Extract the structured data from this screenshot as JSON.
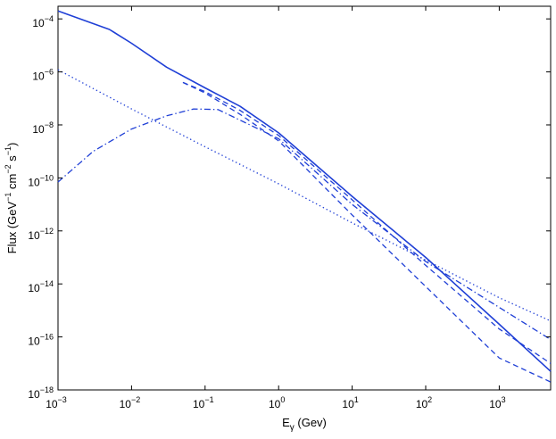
{
  "chart_data": {
    "type": "line",
    "title": "",
    "xlabel": {
      "base": "E",
      "sub": "γ",
      "rest": " (Gev)"
    },
    "ylabel": {
      "parts": [
        {
          "t": "Flux (GeV"
        },
        {
          "t": "−1",
          "sup": true
        },
        {
          "t": " cm"
        },
        {
          "t": "−2",
          "sup": true
        },
        {
          "t": " s"
        },
        {
          "t": "−1",
          "sup": true
        },
        {
          "t": ")"
        }
      ]
    },
    "x_scale": "log",
    "y_scale": "log",
    "xlim": [
      0.001,
      5000
    ],
    "ylim": [
      1e-18,
      0.0003
    ],
    "xticks": [
      0.001,
      0.01,
      0.1,
      1,
      10,
      100,
      1000
    ],
    "xtick_labels": [
      {
        "base": "10",
        "exp": "−3"
      },
      {
        "base": "10",
        "exp": "−2"
      },
      {
        "base": "10",
        "exp": "−1"
      },
      {
        "base": "10",
        "exp": "0"
      },
      {
        "base": "10",
        "exp": "1"
      },
      {
        "base": "10",
        "exp": "2"
      },
      {
        "base": "10",
        "exp": "3"
      }
    ],
    "yticks": [
      1e-18,
      1e-16,
      1e-14,
      1e-12,
      1e-10,
      1e-08,
      1e-06,
      0.0001
    ],
    "ytick_labels": [
      {
        "base": "10",
        "exp": "−18"
      },
      {
        "base": "10",
        "exp": "−16"
      },
      {
        "base": "10",
        "exp": "−14"
      },
      {
        "base": "10",
        "exp": "−12"
      },
      {
        "base": "10",
        "exp": "−10"
      },
      {
        "base": "10",
        "exp": "−8"
      },
      {
        "base": "10",
        "exp": "−6"
      },
      {
        "base": "10",
        "exp": "−4"
      }
    ],
    "grid": false,
    "line_color": "#1f3fd6",
    "series": [
      {
        "style": "solid",
        "points": [
          [
            0.001,
            0.0002
          ],
          [
            0.005,
            4e-05
          ],
          [
            0.01,
            1.2e-05
          ],
          [
            0.03,
            1.5e-06
          ],
          [
            0.1,
            2.5e-07
          ],
          [
            0.3,
            5e-08
          ],
          [
            1,
            5e-09
          ],
          [
            10,
            2e-11
          ],
          [
            100,
            1e-13
          ],
          [
            1000,
            3e-16
          ],
          [
            5000,
            5e-18
          ]
        ]
      },
      {
        "style": "dotted",
        "points": [
          [
            0.001,
            1.2e-06
          ],
          [
            0.01,
            4e-08
          ],
          [
            0.1,
            1.5e-09
          ],
          [
            1,
            6e-11
          ],
          [
            10,
            2e-12
          ],
          [
            100,
            8e-14
          ],
          [
            1000,
            3e-15
          ],
          [
            5000,
            4e-16
          ]
        ]
      },
      {
        "style": "dashdot",
        "points": [
          [
            0.001,
            7e-11
          ],
          [
            0.003,
            1e-09
          ],
          [
            0.01,
            7e-09
          ],
          [
            0.03,
            2.2e-08
          ],
          [
            0.07,
            4e-08
          ],
          [
            0.15,
            3.8e-08
          ],
          [
            0.3,
            1.5e-08
          ],
          [
            1,
            3e-09
          ],
          [
            10,
            1e-11
          ],
          [
            100,
            7e-14
          ],
          [
            1000,
            1.3e-15
          ],
          [
            5000,
            8e-17
          ]
        ]
      },
      {
        "style": "dashed",
        "points": [
          [
            0.05,
            4e-07
          ],
          [
            0.1,
            1.6e-07
          ],
          [
            0.3,
            2.5e-08
          ],
          [
            1,
            2.5e-09
          ],
          [
            10,
            4e-12
          ],
          [
            100,
            8e-15
          ],
          [
            1000,
            1.6e-17
          ],
          [
            5000,
            2e-18
          ]
        ]
      },
      {
        "style": "dashed",
        "points": [
          [
            0.05,
            4e-07
          ],
          [
            0.1,
            1.8e-07
          ],
          [
            0.3,
            3.5e-08
          ],
          [
            1,
            4e-09
          ],
          [
            10,
            1.5e-11
          ],
          [
            100,
            5e-14
          ],
          [
            1000,
            2e-16
          ],
          [
            5000,
            1e-17
          ]
        ]
      }
    ]
  }
}
